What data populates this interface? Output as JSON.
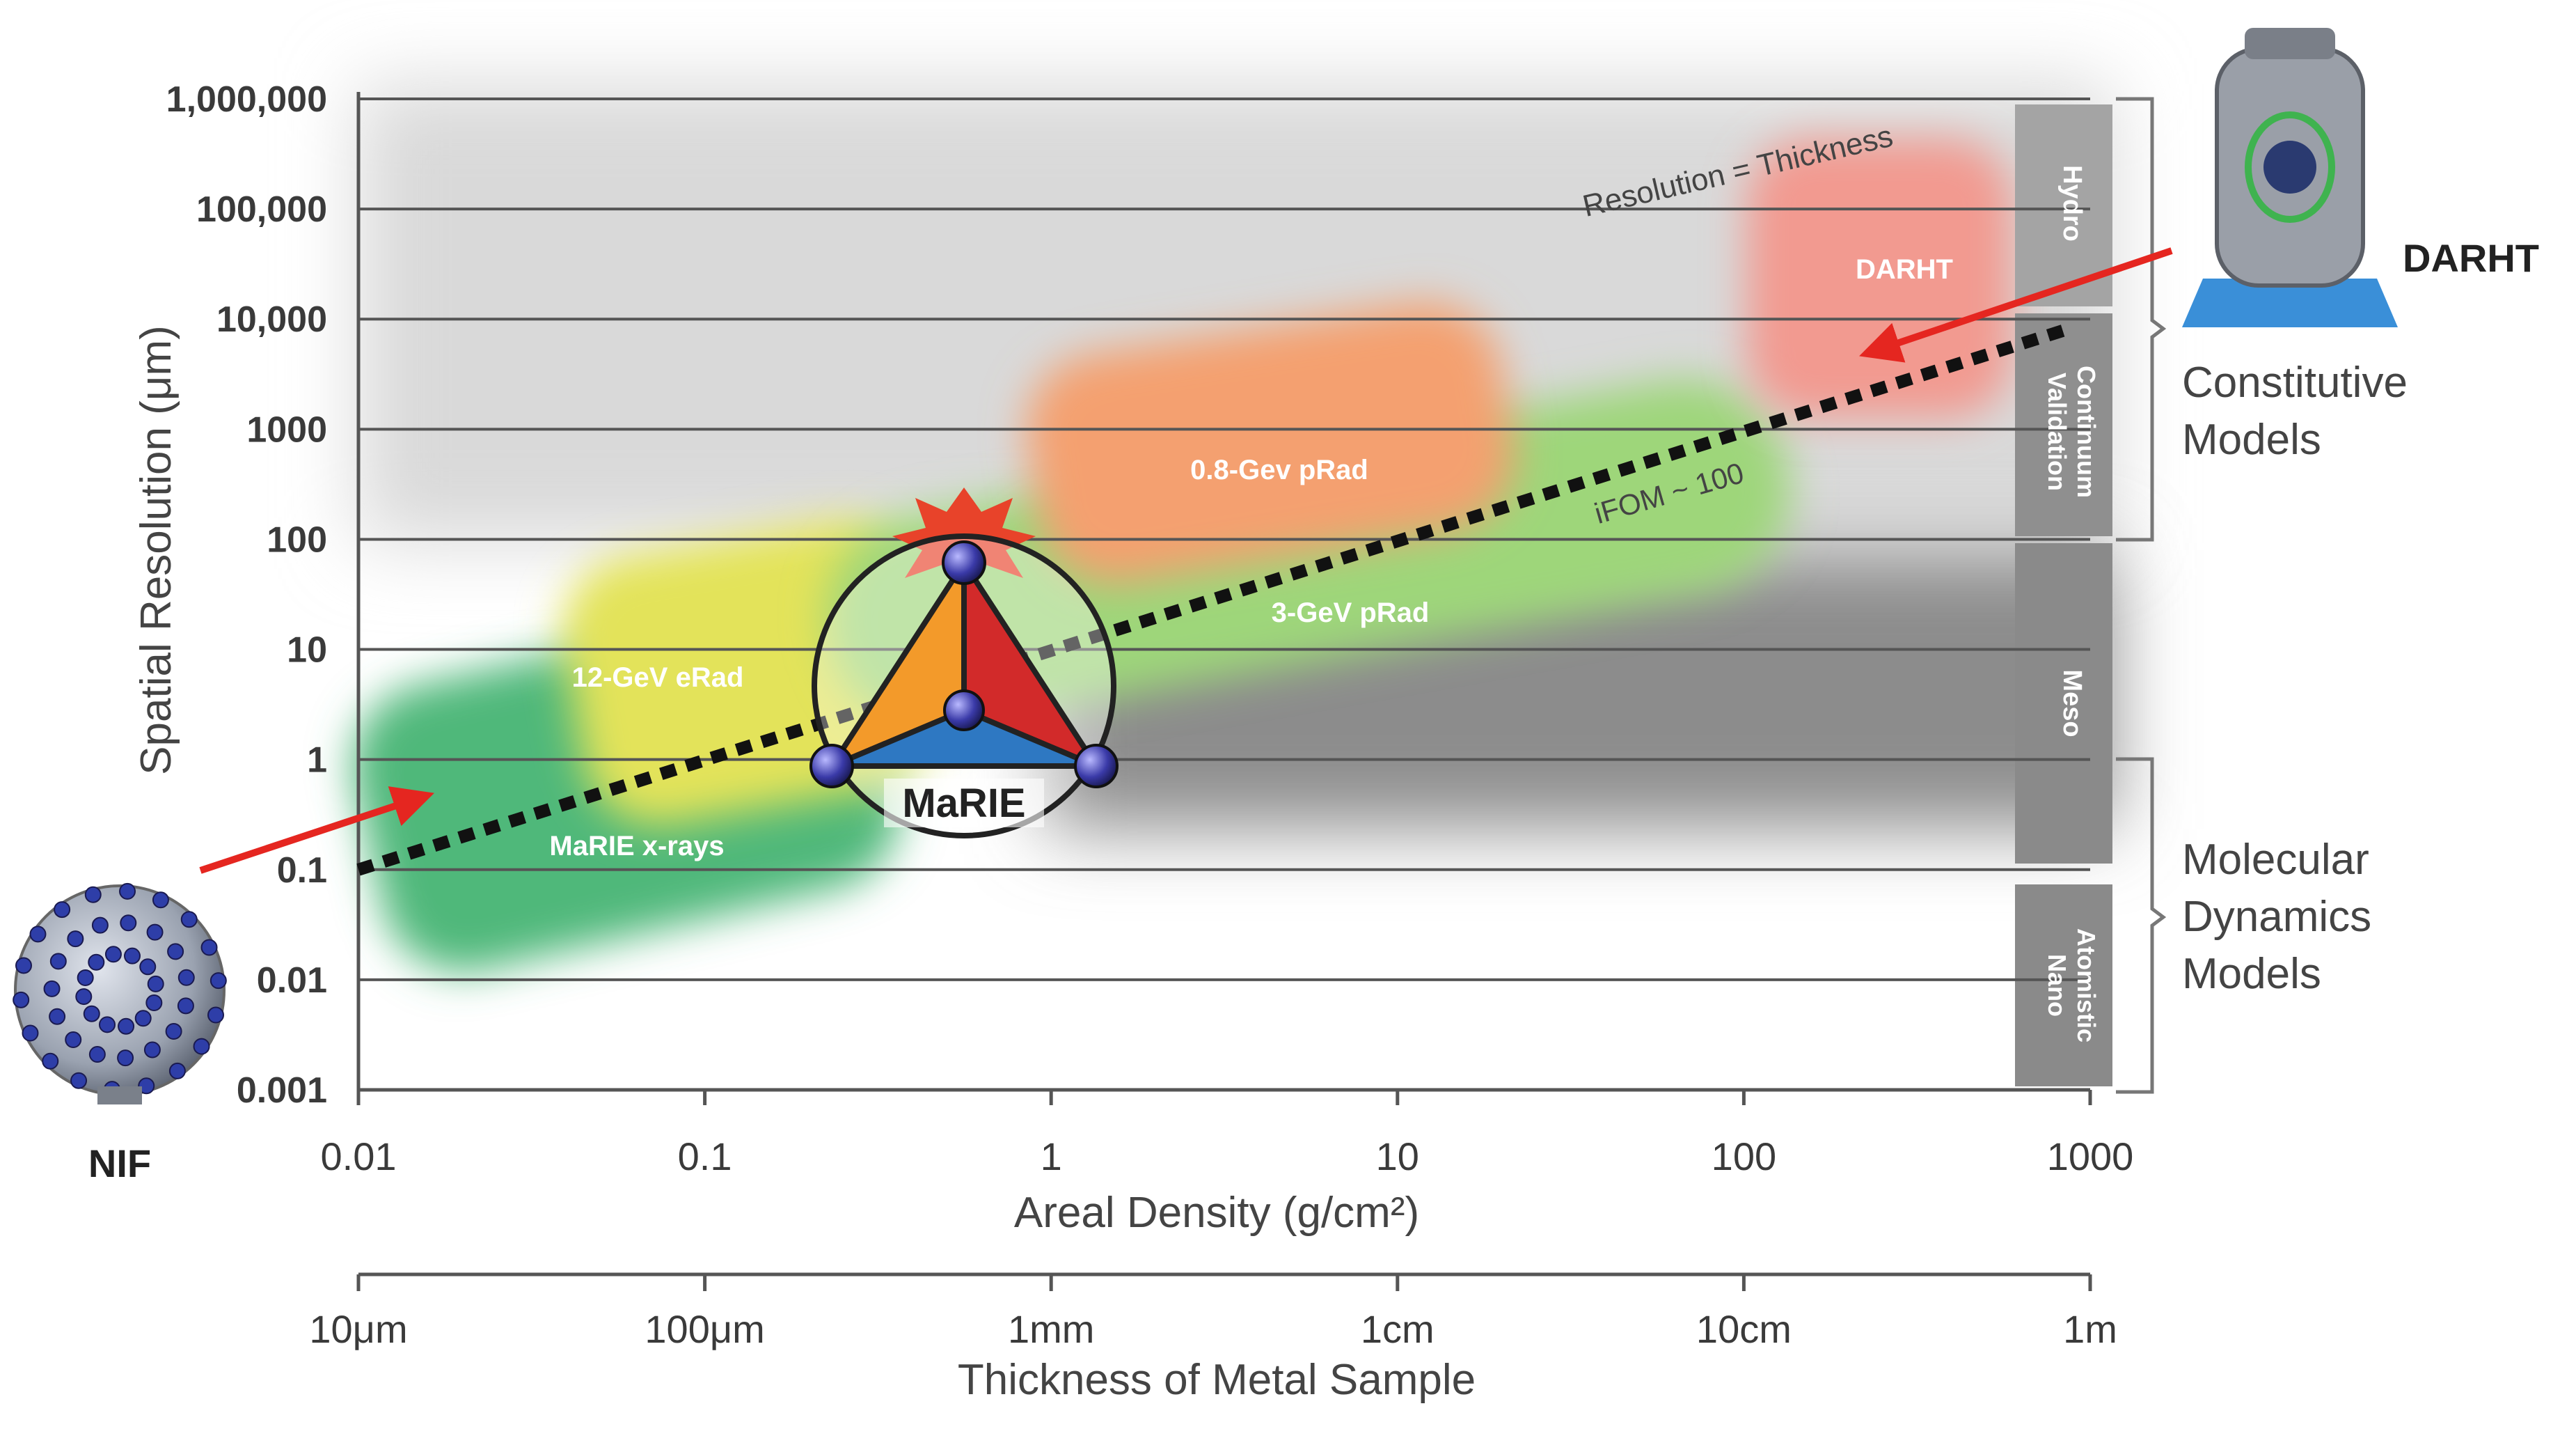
{
  "chart_data": {
    "type": "area",
    "title": "",
    "xlabel": "Areal Density (g/cm²)",
    "ylabel": "Spatial Resolution (μm)",
    "x_scale": "log",
    "y_scale": "log",
    "xlim": [
      0.01,
      1000
    ],
    "ylim": [
      0.001,
      1000000
    ],
    "grid": true,
    "x_tick_values": [
      0.01,
      0.1,
      1,
      10,
      100,
      1000
    ],
    "x_ticks": [
      "0.01",
      "0.1",
      "1",
      "10",
      "100",
      "1000"
    ],
    "y_tick_values": [
      0.001,
      0.01,
      0.1,
      1,
      10,
      100,
      1000,
      10000,
      100000,
      1000000
    ],
    "y_ticks": [
      "0.001",
      "0.01",
      "0.1",
      "1",
      "10",
      "100",
      "1000",
      "10,000",
      "100,000",
      "1,000,000"
    ],
    "secondary_x_axis": {
      "label": "Thickness of Metal Sample",
      "ticks": [
        "10μm",
        "100μm",
        "1mm",
        "1cm",
        "10cm",
        "1m"
      ]
    },
    "regions": [
      {
        "name": "MaRIE x-rays",
        "color": "#4fb87a",
        "x_range": [
          0.01,
          0.6
        ],
        "y_range": [
          0.02,
          20
        ]
      },
      {
        "name": "12-GeV eRad",
        "color": "#e3e35a",
        "x_range": [
          0.04,
          0.35
        ],
        "y_range": [
          0.3,
          80
        ]
      },
      {
        "name": "3-GeV pRad",
        "color": "#9ed67a",
        "x_range": [
          0.2,
          120
        ],
        "y_range": [
          15,
          2000
        ]
      },
      {
        "name": "0.8-Gev pRad",
        "color": "#f4a070",
        "x_range": [
          0.8,
          20
        ],
        "y_range": [
          60,
          12000
        ]
      },
      {
        "name": "DARHT",
        "color": "#f29a90",
        "x_range": [
          100,
          600
        ],
        "y_range": [
          1000,
          100000
        ]
      }
    ],
    "series": [
      {
        "name": "iFOM ~ 100",
        "style": "dotted",
        "x": [
          0.01,
          850
        ],
        "y": [
          0.1,
          8000
        ]
      }
    ],
    "annotations": [
      "Resolution = Thickness",
      "iFOM ~ 100"
    ],
    "scale_bands": [
      "Hydro",
      "Continuum Validation",
      "Meso",
      "Atomistic Nano"
    ],
    "bracket_labels": [
      "Constitutive Models",
      "Molecular Dynamics Models"
    ],
    "facility_labels": [
      "NIF",
      "DARHT",
      "MaRIE"
    ]
  },
  "colors": {
    "gray_band": "#8c8c8c",
    "gridline": "#555555",
    "arrow": "#e52620",
    "marie_orange": "#f39a2a",
    "marie_red": "#d22a2a",
    "marie_blue": "#2e78c2",
    "node": "#2c2c8c"
  }
}
